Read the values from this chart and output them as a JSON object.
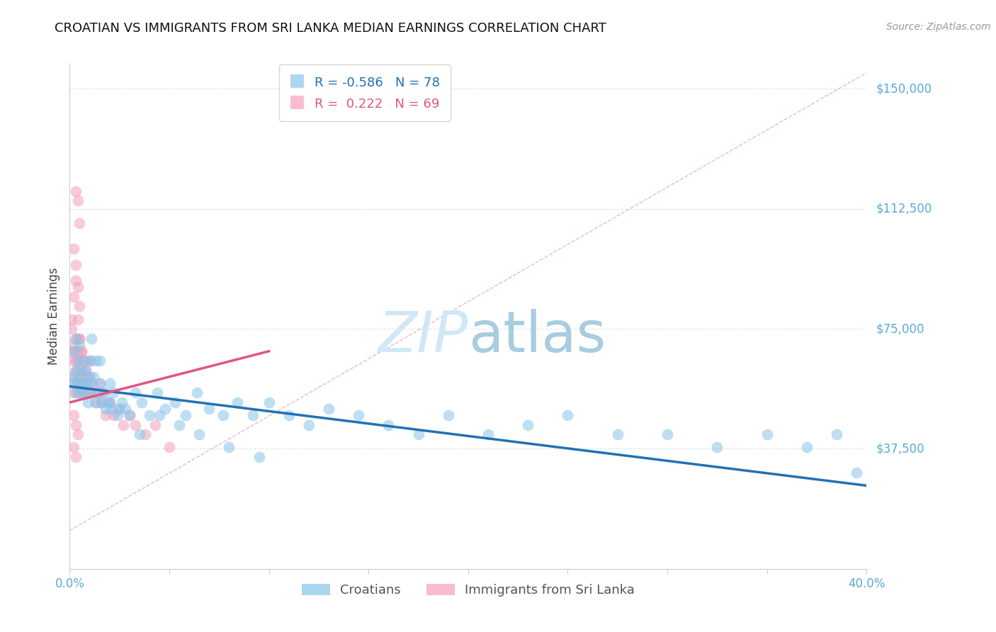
{
  "title": "CROATIAN VS IMMIGRANTS FROM SRI LANKA MEDIAN EARNINGS CORRELATION CHART",
  "source": "Source: ZipAtlas.com",
  "ylabel": "Median Earnings",
  "yticks": [
    0,
    37500,
    75000,
    112500,
    150000
  ],
  "ytick_labels": [
    "",
    "$37,500",
    "$75,000",
    "$112,500",
    "$150,000"
  ],
  "xmin": 0.0,
  "xmax": 0.4,
  "ymin": 10000,
  "ymax": 158000,
  "blue_color": "#89c4e8",
  "pink_color": "#f4a0bc",
  "blue_line_color": "#2171b5",
  "pink_line_color": "#e05585",
  "diag_line_color": "#e8a0b8",
  "tick_label_color": "#5aaad8",
  "watermark_color": "#d0e8f5",
  "grid_color": "#d8e8f0",
  "legend_r_blue": "-0.586",
  "legend_n_blue": "78",
  "legend_r_pink": "0.222",
  "legend_n_pink": "69",
  "blue_label": "Croatians",
  "pink_label": "Immigrants from Sri Lanka",
  "blue_scatter_x": [
    0.001,
    0.002,
    0.002,
    0.003,
    0.003,
    0.003,
    0.004,
    0.004,
    0.005,
    0.005,
    0.005,
    0.006,
    0.006,
    0.007,
    0.007,
    0.008,
    0.008,
    0.009,
    0.009,
    0.01,
    0.01,
    0.011,
    0.011,
    0.012,
    0.013,
    0.013,
    0.014,
    0.015,
    0.016,
    0.017,
    0.018,
    0.019,
    0.02,
    0.021,
    0.022,
    0.024,
    0.026,
    0.028,
    0.03,
    0.033,
    0.036,
    0.04,
    0.044,
    0.048,
    0.053,
    0.058,
    0.064,
    0.07,
    0.077,
    0.084,
    0.092,
    0.1,
    0.11,
    0.12,
    0.13,
    0.145,
    0.16,
    0.175,
    0.19,
    0.21,
    0.23,
    0.25,
    0.275,
    0.3,
    0.325,
    0.35,
    0.37,
    0.385,
    0.395,
    0.015,
    0.02,
    0.025,
    0.035,
    0.045,
    0.055,
    0.065,
    0.08,
    0.095
  ],
  "blue_scatter_y": [
    60000,
    68000,
    58000,
    72000,
    62000,
    55000,
    65000,
    58000,
    60000,
    55000,
    70000,
    62000,
    58000,
    65000,
    55000,
    62000,
    58000,
    60000,
    52000,
    65000,
    55000,
    58000,
    72000,
    60000,
    65000,
    52000,
    55000,
    58000,
    52000,
    55000,
    50000,
    52000,
    58000,
    50000,
    55000,
    48000,
    52000,
    50000,
    48000,
    55000,
    52000,
    48000,
    55000,
    50000,
    52000,
    48000,
    55000,
    50000,
    48000,
    52000,
    48000,
    52000,
    48000,
    45000,
    50000,
    48000,
    45000,
    42000,
    48000,
    42000,
    45000,
    48000,
    42000,
    42000,
    38000,
    42000,
    38000,
    42000,
    30000,
    65000,
    52000,
    50000,
    42000,
    48000,
    45000,
    42000,
    38000,
    35000
  ],
  "pink_scatter_x": [
    0.001,
    0.001,
    0.001,
    0.002,
    0.002,
    0.002,
    0.002,
    0.003,
    0.003,
    0.003,
    0.003,
    0.003,
    0.004,
    0.004,
    0.004,
    0.004,
    0.005,
    0.005,
    0.005,
    0.005,
    0.006,
    0.006,
    0.006,
    0.006,
    0.007,
    0.007,
    0.007,
    0.008,
    0.008,
    0.008,
    0.009,
    0.009,
    0.01,
    0.01,
    0.01,
    0.011,
    0.012,
    0.013,
    0.014,
    0.015,
    0.016,
    0.017,
    0.018,
    0.02,
    0.022,
    0.024,
    0.027,
    0.03,
    0.033,
    0.038,
    0.043,
    0.05,
    0.002,
    0.003,
    0.004,
    0.005,
    0.006,
    0.003,
    0.004,
    0.005,
    0.002,
    0.003,
    0.004,
    0.005,
    0.002,
    0.003,
    0.004,
    0.002,
    0.003
  ],
  "pink_scatter_y": [
    68000,
    75000,
    78000,
    65000,
    70000,
    60000,
    55000,
    62000,
    68000,
    58000,
    72000,
    65000,
    62000,
    58000,
    68000,
    55000,
    65000,
    60000,
    72000,
    58000,
    62000,
    68000,
    55000,
    58000,
    65000,
    60000,
    55000,
    62000,
    58000,
    65000,
    58000,
    55000,
    60000,
    65000,
    55000,
    58000,
    55000,
    52000,
    55000,
    58000,
    52000,
    55000,
    48000,
    52000,
    48000,
    50000,
    45000,
    48000,
    45000,
    42000,
    45000,
    38000,
    85000,
    90000,
    78000,
    72000,
    68000,
    118000,
    115000,
    108000,
    100000,
    95000,
    88000,
    82000,
    48000,
    45000,
    42000,
    38000,
    35000
  ],
  "blue_trend_x": [
    0.0,
    0.4
  ],
  "blue_trend_y": [
    57000,
    26000
  ],
  "pink_trend_x": [
    0.0,
    0.1
  ],
  "pink_trend_y": [
    52000,
    68000
  ],
  "diag_line_x": [
    0.0,
    0.4
  ],
  "diag_line_y": [
    12000,
    155000
  ],
  "background_color": "#ffffff",
  "title_fontsize": 13,
  "source_fontsize": 10
}
